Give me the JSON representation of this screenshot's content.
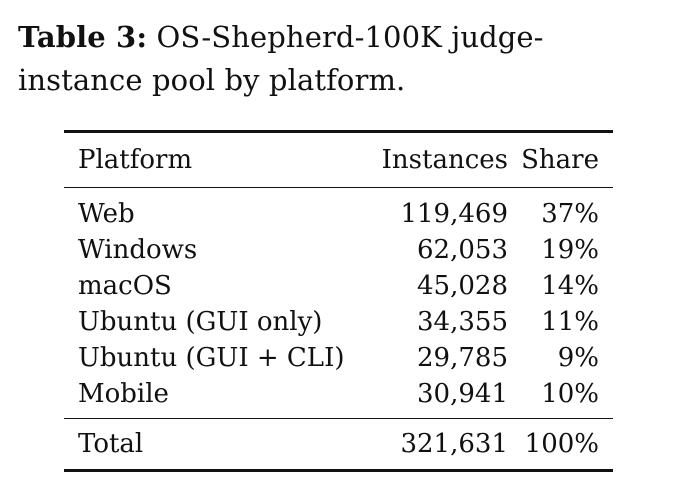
{
  "caption": {
    "label": "Table 3:",
    "text": "OS-Shepherd-100K judge-instance pool by platform."
  },
  "table": {
    "headers": {
      "platform": "Platform",
      "instances": "Instances",
      "share": "Share"
    },
    "rows": [
      {
        "platform": "Web",
        "instances": "119,469",
        "share": "37%"
      },
      {
        "platform": "Windows",
        "instances": "62,053",
        "share": "19%"
      },
      {
        "platform": "macOS",
        "instances": "45,028",
        "share": "14%"
      },
      {
        "platform": "Ubuntu (GUI only)",
        "instances": "34,355",
        "share": "11%"
      },
      {
        "platform": "Ubuntu (GUI + CLI)",
        "instances": "29,785",
        "share": "9%"
      },
      {
        "platform": "Mobile",
        "instances": "30,941",
        "share": "10%"
      }
    ],
    "total": {
      "platform": "Total",
      "instances": "321,631",
      "share": "100%"
    }
  }
}
